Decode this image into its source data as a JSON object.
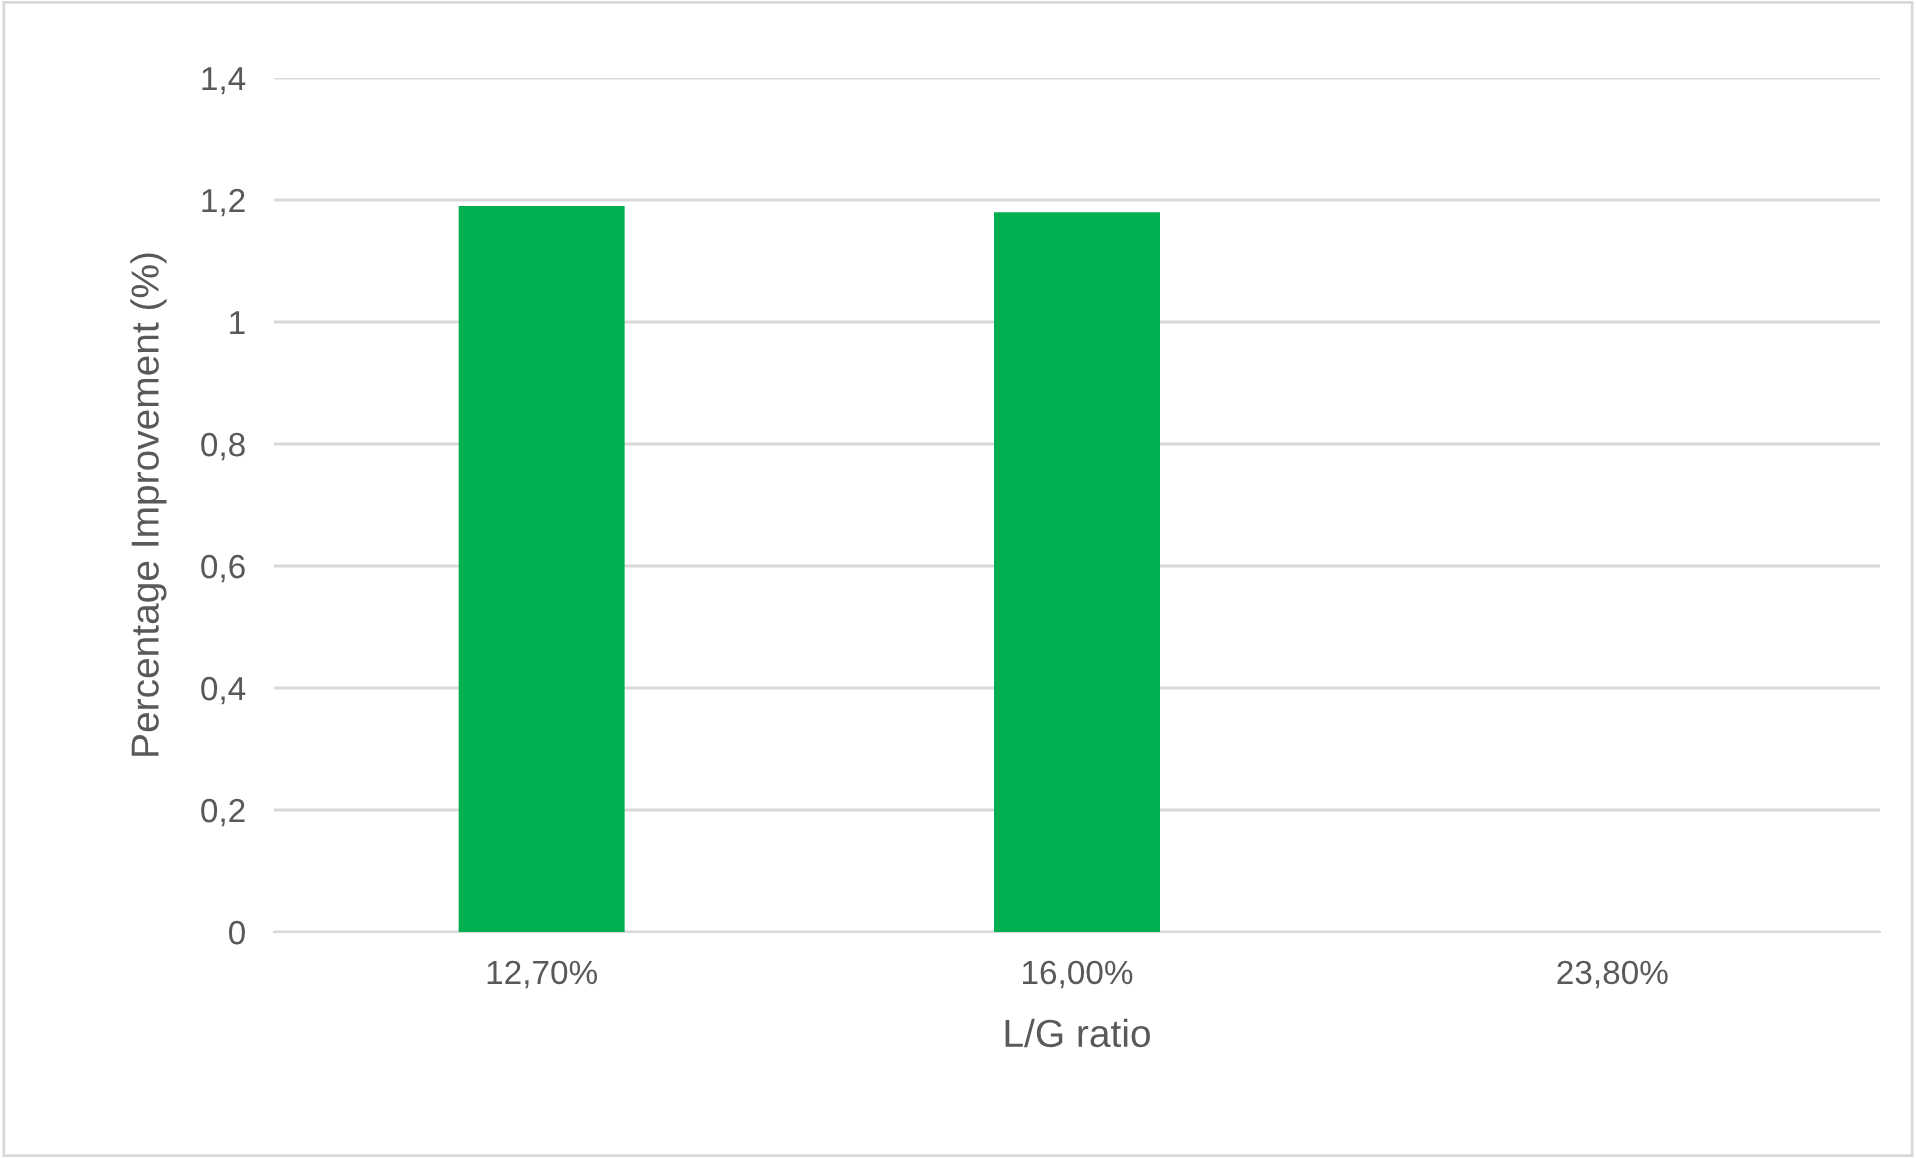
{
  "chart_data": {
    "type": "bar",
    "xlabel": "L/G ratio",
    "ylabel": "Percentage Improvement (%)",
    "categories": [
      "12,70%",
      "16,00%",
      "23,80%"
    ],
    "values": [
      1.19,
      1.18,
      0
    ],
    "color": "#00b050",
    "ylim": [
      0,
      1.4
    ],
    "yticks": [
      {
        "value": 0,
        "label": "0"
      },
      {
        "value": 0.2,
        "label": "0,2"
      },
      {
        "value": 0.4,
        "label": "0,4"
      },
      {
        "value": 0.6,
        "label": "0,6"
      },
      {
        "value": 0.8,
        "label": "0,8"
      },
      {
        "value": 1,
        "label": "1"
      },
      {
        "value": 1.2,
        "label": "1,2"
      },
      {
        "value": 1.4,
        "label": "1,4"
      }
    ],
    "grid": "y"
  }
}
